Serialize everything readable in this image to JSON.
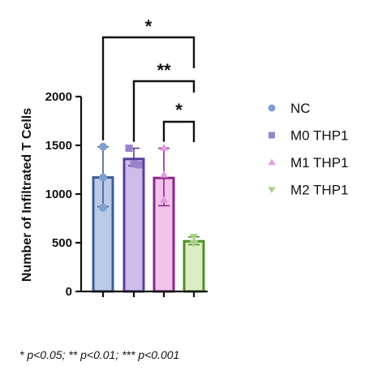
{
  "chart_data": {
    "type": "bar",
    "categories": [
      "NC",
      "M0 THP1",
      "M1 THP1",
      "M2 THP1"
    ],
    "values": [
      1170,
      1360,
      1165,
      515
    ],
    "error": [
      {
        "low": 870,
        "high": 1485
      },
      {
        "low": 1290,
        "high": 1470
      },
      {
        "low": 880,
        "high": 1470
      },
      {
        "low": 480,
        "high": 560
      }
    ],
    "points": [
      [
        1485,
        1170,
        860
      ],
      [
        1470,
        1310,
        1300
      ],
      [
        1475,
        1200,
        940
      ],
      [
        560,
        500,
        490
      ]
    ],
    "ylabel": "Number of Infiltrated T Cells",
    "ylim": [
      0,
      2000
    ],
    "yticks": [
      0,
      500,
      1000,
      1500,
      2000
    ],
    "ytick_labels": [
      "0",
      "500",
      "1000",
      "1500",
      "2000"
    ],
    "legend": {
      "placement": "right",
      "entries": [
        {
          "label": "NC",
          "marker": "circle"
        },
        {
          "label": "M0 THP1",
          "marker": "square"
        },
        {
          "label": "M1 THP1",
          "marker": "triangle-up"
        },
        {
          "label": "M2 THP1",
          "marker": "triangle-down"
        }
      ]
    },
    "colors": {
      "fill": [
        "#b9cbe6",
        "#cdbde8",
        "#f2c3ec",
        "#dcedc3"
      ],
      "edge": [
        "#3c5f93",
        "#5a3f9a",
        "#8a2a88",
        "#4f8f2c"
      ],
      "marker": [
        "#7f9fcc",
        "#9a82cc",
        "#e39be0",
        "#a8d089"
      ]
    },
    "significance": [
      {
        "from": 0,
        "to": 3,
        "label": "*"
      },
      {
        "from": 1,
        "to": 3,
        "label": "**"
      },
      {
        "from": 2,
        "to": 3,
        "label": "*"
      }
    ],
    "grid": false
  },
  "footnote": "* p<0.05; ** p<0.01; *** p<0.001"
}
